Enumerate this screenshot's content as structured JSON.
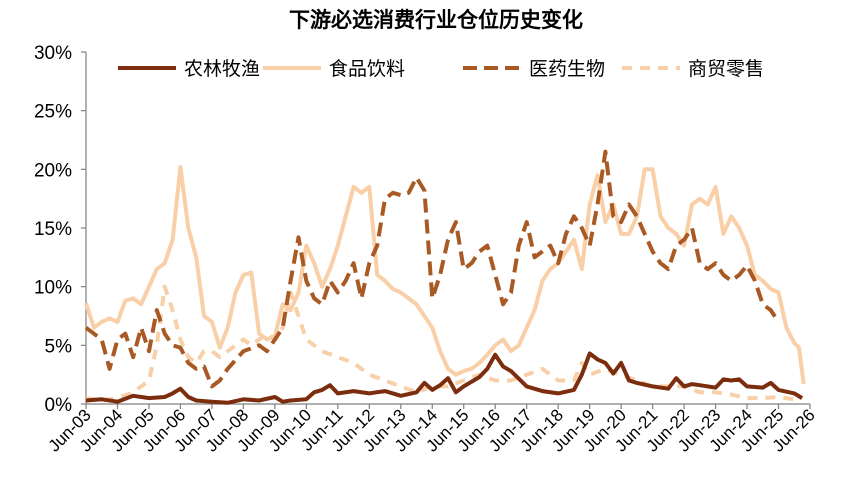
{
  "chart_data": {
    "type": "line",
    "title": "下游必选消费行业仓位历史变化",
    "xlabel": "",
    "ylabel": "",
    "ylim": [
      0,
      30
    ],
    "y_tick_labels": [
      "0%",
      "5%",
      "10%",
      "15%",
      "20%",
      "25%",
      "30%"
    ],
    "x": [
      "2003-06",
      "2026-06"
    ],
    "x_tick_labels": [
      "Jun-03",
      "Jun-04",
      "Jun-05",
      "Jun-06",
      "Jun-07",
      "Jun-08",
      "Jun-09",
      "Jun-10",
      "Jun-11",
      "Jun-12",
      "Jun-13",
      "Jun-14",
      "Jun-15",
      "Jun-16",
      "Jun-17",
      "Jun-18",
      "Jun-19",
      "Jun-20",
      "Jun-21",
      "Jun-22",
      "Jun-23",
      "Jun-24",
      "Jun-25",
      "Jun-26"
    ],
    "grid": false,
    "legend_position": "top",
    "series": [
      {
        "name": "农林牧渔",
        "color": "#7b2d0e",
        "dash": "solid",
        "points": [
          [
            2003.5,
            0.3
          ],
          [
            2004.0,
            0.4
          ],
          [
            2004.5,
            0.2
          ],
          [
            2005.0,
            0.7
          ],
          [
            2005.5,
            0.5
          ],
          [
            2006.0,
            0.6
          ],
          [
            2006.25,
            0.9
          ],
          [
            2006.5,
            1.3
          ],
          [
            2006.75,
            0.6
          ],
          [
            2007.0,
            0.3
          ],
          [
            2007.5,
            0.2
          ],
          [
            2008.0,
            0.1
          ],
          [
            2008.5,
            0.4
          ],
          [
            2009.0,
            0.3
          ],
          [
            2009.5,
            0.6
          ],
          [
            2009.75,
            0.2
          ],
          [
            2010.0,
            0.3
          ],
          [
            2010.5,
            0.4
          ],
          [
            2010.75,
            1.0
          ],
          [
            2011.0,
            1.2
          ],
          [
            2011.25,
            1.6
          ],
          [
            2011.5,
            0.9
          ],
          [
            2012.0,
            1.1
          ],
          [
            2012.5,
            0.9
          ],
          [
            2013.0,
            1.1
          ],
          [
            2013.5,
            0.7
          ],
          [
            2014.0,
            1.0
          ],
          [
            2014.25,
            1.8
          ],
          [
            2014.5,
            1.2
          ],
          [
            2014.75,
            1.6
          ],
          [
            2015.0,
            2.2
          ],
          [
            2015.25,
            1.0
          ],
          [
            2015.5,
            1.5
          ],
          [
            2016.0,
            2.3
          ],
          [
            2016.25,
            3.0
          ],
          [
            2016.5,
            4.2
          ],
          [
            2016.75,
            3.2
          ],
          [
            2017.0,
            2.8
          ],
          [
            2017.5,
            1.5
          ],
          [
            2018.0,
            1.1
          ],
          [
            2018.5,
            0.9
          ],
          [
            2019.0,
            1.2
          ],
          [
            2019.25,
            2.5
          ],
          [
            2019.5,
            4.3
          ],
          [
            2019.75,
            3.8
          ],
          [
            2020.0,
            3.5
          ],
          [
            2020.25,
            2.6
          ],
          [
            2020.5,
            3.5
          ],
          [
            2020.75,
            2.0
          ],
          [
            2021.0,
            1.8
          ],
          [
            2021.5,
            1.5
          ],
          [
            2022.0,
            1.3
          ],
          [
            2022.25,
            2.2
          ],
          [
            2022.5,
            1.5
          ],
          [
            2022.75,
            1.7
          ],
          [
            2023.0,
            1.6
          ],
          [
            2023.5,
            1.4
          ],
          [
            2023.75,
            2.1
          ],
          [
            2024.0,
            2.0
          ],
          [
            2024.25,
            2.1
          ],
          [
            2024.5,
            1.5
          ],
          [
            2025.0,
            1.4
          ],
          [
            2025.25,
            1.8
          ],
          [
            2025.5,
            1.2
          ],
          [
            2026.0,
            0.9
          ],
          [
            2026.25,
            0.5
          ]
        ]
      },
      {
        "name": "食品饮料",
        "color": "#f9cfa8",
        "dash": "solid",
        "points": [
          [
            2003.5,
            8.6
          ],
          [
            2003.75,
            6.5
          ],
          [
            2004.0,
            7.0
          ],
          [
            2004.25,
            7.3
          ],
          [
            2004.5,
            7.0
          ],
          [
            2004.75,
            8.8
          ],
          [
            2005.0,
            9.0
          ],
          [
            2005.25,
            8.5
          ],
          [
            2005.5,
            10.0
          ],
          [
            2005.75,
            11.5
          ],
          [
            2006.0,
            12.0
          ],
          [
            2006.25,
            14.0
          ],
          [
            2006.5,
            20.2
          ],
          [
            2006.75,
            15.0
          ],
          [
            2007.0,
            12.5
          ],
          [
            2007.25,
            7.5
          ],
          [
            2007.5,
            7.0
          ],
          [
            2007.75,
            4.8
          ],
          [
            2008.0,
            6.5
          ],
          [
            2008.25,
            9.5
          ],
          [
            2008.5,
            11.0
          ],
          [
            2008.75,
            11.2
          ],
          [
            2009.0,
            6.0
          ],
          [
            2009.25,
            5.5
          ],
          [
            2009.5,
            5.8
          ],
          [
            2009.75,
            8.5
          ],
          [
            2010.0,
            8.0
          ],
          [
            2010.25,
            9.5
          ],
          [
            2010.5,
            13.5
          ],
          [
            2010.75,
            12.0
          ],
          [
            2011.0,
            10.0
          ],
          [
            2011.25,
            11.5
          ],
          [
            2011.5,
            13.5
          ],
          [
            2011.75,
            16.0
          ],
          [
            2012.0,
            18.5
          ],
          [
            2012.25,
            18.0
          ],
          [
            2012.5,
            18.5
          ],
          [
            2012.75,
            11.0
          ],
          [
            2013.0,
            10.5
          ],
          [
            2013.25,
            9.8
          ],
          [
            2013.5,
            9.5
          ],
          [
            2013.75,
            9.0
          ],
          [
            2014.0,
            8.5
          ],
          [
            2014.25,
            7.5
          ],
          [
            2014.5,
            6.5
          ],
          [
            2014.75,
            4.5
          ],
          [
            2015.0,
            3.0
          ],
          [
            2015.25,
            2.5
          ],
          [
            2015.5,
            2.8
          ],
          [
            2015.75,
            3.0
          ],
          [
            2016.0,
            3.5
          ],
          [
            2016.25,
            4.2
          ],
          [
            2016.5,
            5.0
          ],
          [
            2016.75,
            5.5
          ],
          [
            2017.0,
            4.5
          ],
          [
            2017.25,
            5.0
          ],
          [
            2017.5,
            6.5
          ],
          [
            2017.75,
            8.0
          ],
          [
            2018.0,
            10.5
          ],
          [
            2018.25,
            11.5
          ],
          [
            2018.5,
            12.0
          ],
          [
            2018.75,
            13.0
          ],
          [
            2019.0,
            14.0
          ],
          [
            2019.25,
            11.5
          ],
          [
            2019.5,
            17.0
          ],
          [
            2019.75,
            19.5
          ],
          [
            2020.0,
            15.5
          ],
          [
            2020.25,
            17.0
          ],
          [
            2020.5,
            14.5
          ],
          [
            2020.75,
            14.5
          ],
          [
            2021.0,
            16.0
          ],
          [
            2021.25,
            20.0
          ],
          [
            2021.5,
            20.0
          ],
          [
            2021.75,
            16.0
          ],
          [
            2022.0,
            15.0
          ],
          [
            2022.25,
            14.5
          ],
          [
            2022.5,
            13.5
          ],
          [
            2022.75,
            17.0
          ],
          [
            2023.0,
            17.5
          ],
          [
            2023.25,
            17.0
          ],
          [
            2023.5,
            18.5
          ],
          [
            2023.75,
            14.5
          ],
          [
            2024.0,
            16.0
          ],
          [
            2024.25,
            15.0
          ],
          [
            2024.5,
            13.5
          ],
          [
            2024.75,
            11.0
          ],
          [
            2025.0,
            10.5
          ],
          [
            2025.25,
            9.8
          ],
          [
            2025.5,
            9.5
          ],
          [
            2025.75,
            6.5
          ],
          [
            2026.0,
            5.2
          ],
          [
            2026.15,
            4.8
          ],
          [
            2026.3,
            1.7
          ]
        ]
      },
      {
        "name": "医药生物",
        "color": "#a95a24",
        "dash": "long",
        "points": [
          [
            2003.5,
            6.5
          ],
          [
            2004.0,
            5.5
          ],
          [
            2004.25,
            3.0
          ],
          [
            2004.5,
            5.5
          ],
          [
            2004.75,
            6.0
          ],
          [
            2005.0,
            4.0
          ],
          [
            2005.25,
            6.5
          ],
          [
            2005.5,
            4.5
          ],
          [
            2005.75,
            8.0
          ],
          [
            2006.0,
            6.0
          ],
          [
            2006.25,
            5.0
          ],
          [
            2006.5,
            4.8
          ],
          [
            2006.75,
            3.5
          ],
          [
            2007.0,
            3.0
          ],
          [
            2007.25,
            3.2
          ],
          [
            2007.5,
            1.5
          ],
          [
            2007.75,
            2.0
          ],
          [
            2008.0,
            3.0
          ],
          [
            2008.5,
            4.5
          ],
          [
            2009.0,
            5.0
          ],
          [
            2009.25,
            4.5
          ],
          [
            2009.5,
            5.5
          ],
          [
            2009.75,
            6.5
          ],
          [
            2010.0,
            10.5
          ],
          [
            2010.25,
            14.2
          ],
          [
            2010.5,
            10.5
          ],
          [
            2010.75,
            9.0
          ],
          [
            2011.0,
            8.5
          ],
          [
            2011.25,
            10.5
          ],
          [
            2011.5,
            9.5
          ],
          [
            2011.75,
            10.5
          ],
          [
            2012.0,
            12.0
          ],
          [
            2012.25,
            9.0
          ],
          [
            2012.5,
            12.0
          ],
          [
            2012.75,
            13.5
          ],
          [
            2013.0,
            17.5
          ],
          [
            2013.25,
            18.0
          ],
          [
            2013.5,
            17.8
          ],
          [
            2013.75,
            18.0
          ],
          [
            2014.0,
            19.3
          ],
          [
            2014.25,
            18.2
          ],
          [
            2014.5,
            9.0
          ],
          [
            2014.75,
            11.0
          ],
          [
            2015.0,
            14.0
          ],
          [
            2015.25,
            15.5
          ],
          [
            2015.5,
            11.5
          ],
          [
            2015.75,
            12.0
          ],
          [
            2016.0,
            13.0
          ],
          [
            2016.25,
            13.5
          ],
          [
            2016.5,
            11.0
          ],
          [
            2016.75,
            8.5
          ],
          [
            2017.0,
            9.5
          ],
          [
            2017.25,
            13.5
          ],
          [
            2017.5,
            15.5
          ],
          [
            2017.75,
            12.5
          ],
          [
            2018.0,
            13.0
          ],
          [
            2018.25,
            13.5
          ],
          [
            2018.5,
            12.0
          ],
          [
            2018.75,
            14.5
          ],
          [
            2019.0,
            16.0
          ],
          [
            2019.25,
            15.0
          ],
          [
            2019.5,
            13.5
          ],
          [
            2019.75,
            17.0
          ],
          [
            2020.0,
            21.5
          ],
          [
            2020.25,
            16.0
          ],
          [
            2020.5,
            15.5
          ],
          [
            2020.75,
            17.0
          ],
          [
            2021.0,
            16.0
          ],
          [
            2021.25,
            14.5
          ],
          [
            2021.5,
            13.0
          ],
          [
            2021.75,
            12.0
          ],
          [
            2022.0,
            11.5
          ],
          [
            2022.25,
            13.5
          ],
          [
            2022.5,
            14.0
          ],
          [
            2022.75,
            15.0
          ],
          [
            2023.0,
            12.0
          ],
          [
            2023.25,
            11.5
          ],
          [
            2023.5,
            12.0
          ],
          [
            2023.75,
            11.0
          ],
          [
            2024.0,
            10.5
          ],
          [
            2024.25,
            11.0
          ],
          [
            2024.5,
            11.8
          ],
          [
            2024.75,
            10.5
          ],
          [
            2025.0,
            8.5
          ],
          [
            2025.25,
            8.0
          ],
          [
            2025.5,
            7.0
          ]
        ]
      },
      {
        "name": "商贸零售",
        "color": "#f9cfa8",
        "dash": "short",
        "points": [
          [
            2003.5,
            0.5
          ],
          [
            2004.0,
            0.3
          ],
          [
            2004.5,
            0.5
          ],
          [
            2005.0,
            1.0
          ],
          [
            2005.5,
            2.0
          ],
          [
            2005.75,
            5.0
          ],
          [
            2006.0,
            10.0
          ],
          [
            2006.25,
            8.0
          ],
          [
            2006.5,
            5.5
          ],
          [
            2006.75,
            4.0
          ],
          [
            2007.0,
            3.5
          ],
          [
            2007.25,
            4.5
          ],
          [
            2007.5,
            4.5
          ],
          [
            2007.75,
            4.0
          ],
          [
            2008.0,
            4.5
          ],
          [
            2008.25,
            5.0
          ],
          [
            2008.5,
            5.5
          ],
          [
            2008.75,
            5.0
          ],
          [
            2009.0,
            5.5
          ],
          [
            2009.25,
            6.0
          ],
          [
            2009.5,
            5.5
          ],
          [
            2009.75,
            6.5
          ],
          [
            2010.0,
            9.5
          ],
          [
            2010.25,
            7.5
          ],
          [
            2010.5,
            5.5
          ],
          [
            2010.75,
            5.0
          ],
          [
            2011.0,
            4.5
          ],
          [
            2011.5,
            4.0
          ],
          [
            2012.0,
            3.5
          ],
          [
            2012.5,
            2.5
          ],
          [
            2013.0,
            2.0
          ],
          [
            2013.5,
            1.5
          ],
          [
            2014.0,
            1.0
          ],
          [
            2014.5,
            1.5
          ],
          [
            2015.0,
            1.5
          ],
          [
            2015.5,
            2.0
          ],
          [
            2016.0,
            2.5
          ],
          [
            2016.5,
            2.0
          ],
          [
            2017.0,
            2.0
          ],
          [
            2017.5,
            2.5
          ],
          [
            2018.0,
            3.0
          ],
          [
            2018.5,
            2.0
          ],
          [
            2019.0,
            2.0
          ],
          [
            2019.25,
            3.5
          ],
          [
            2019.5,
            2.5
          ],
          [
            2020.0,
            3.0
          ],
          [
            2020.5,
            2.5
          ],
          [
            2021.0,
            2.0
          ],
          [
            2021.5,
            1.5
          ],
          [
            2022.0,
            1.5
          ],
          [
            2022.5,
            1.5
          ],
          [
            2023.0,
            1.0
          ],
          [
            2023.5,
            1.0
          ],
          [
            2024.0,
            0.8
          ],
          [
            2024.5,
            0.5
          ],
          [
            2025.0,
            0.5
          ],
          [
            2025.5,
            0.6
          ],
          [
            2026.0,
            0.4
          ]
        ]
      }
    ]
  }
}
